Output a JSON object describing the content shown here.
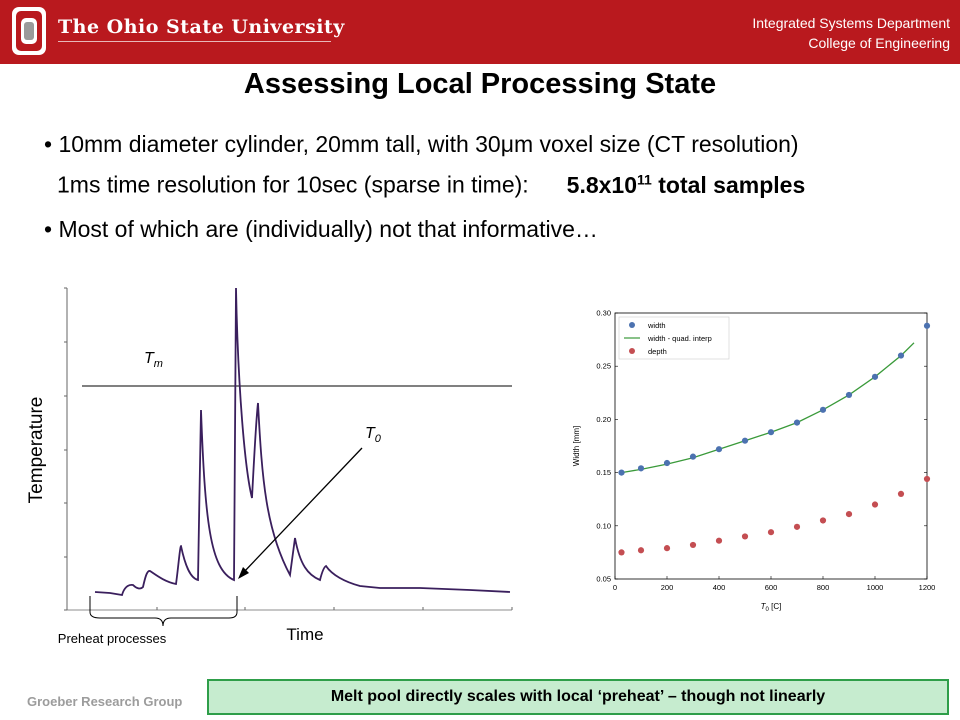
{
  "header": {
    "university": "The Ohio State University",
    "dept_line1": "Integrated Systems Department",
    "dept_line2": "College of Engineering",
    "brand_color": "#b9191e"
  },
  "slide": {
    "title": "Assessing Local Processing State",
    "bullet1": "• 10mm diameter cylinder, 20mm tall, with 30μm voxel size (CT resolution)",
    "bullet1_sub": "1ms time resolution for 10sec (sparse in time):",
    "samples_base": "5.8x10",
    "samples_exp": "11",
    "samples_tail": " total samples",
    "bullet2": "• Most of which are (individually) not that informative…"
  },
  "left_plot": {
    "ylabel": "Temperature",
    "xlabel": "Time",
    "tm_label": "T",
    "tm_sub": "m",
    "t0_label": "T",
    "t0_sub": "0",
    "preheat_label": "Preheat processes"
  },
  "chart_data": {
    "type": "scatter",
    "x": [
      25,
      100,
      200,
      300,
      400,
      500,
      600,
      700,
      800,
      900,
      1000,
      1100,
      1200
    ],
    "series": [
      {
        "name": "width",
        "color": "#4c72b0",
        "values": [
          0.15,
          0.154,
          0.159,
          0.165,
          0.172,
          0.18,
          0.188,
          0.197,
          0.209,
          0.223,
          0.24,
          0.26,
          0.288
        ]
      },
      {
        "name": "width - quad. interp",
        "color": "#3a9a3a",
        "kind": "line",
        "x": [
          25,
          100,
          200,
          300,
          400,
          500,
          600,
          700,
          800,
          900,
          1000,
          1100,
          1150
        ],
        "values": [
          0.15,
          0.153,
          0.158,
          0.164,
          0.172,
          0.18,
          0.188,
          0.197,
          0.209,
          0.223,
          0.24,
          0.26,
          0.272
        ]
      },
      {
        "name": "depth",
        "color": "#c44e52",
        "values": [
          0.075,
          0.077,
          0.079,
          0.082,
          0.086,
          0.09,
          0.094,
          0.099,
          0.105,
          0.111,
          0.12,
          0.13,
          0.144
        ]
      }
    ],
    "xlabel_base": "T",
    "xlabel_sub": "0",
    "xlabel_unit": " [C]",
    "ylabel": "Width [mm]",
    "xlim": [
      0,
      1200
    ],
    "ylim": [
      0.05,
      0.3
    ],
    "xticks": [
      "0",
      "200",
      "400",
      "600",
      "800",
      "1000",
      "1200"
    ],
    "yticks": [
      "0.05",
      "0.10",
      "0.15",
      "0.20",
      "0.25",
      "0.30"
    ],
    "legend": "top-left",
    "grid": false
  },
  "footer": {
    "group": "Groeber Research Group",
    "callout": "Melt pool directly scales with local ‘preheat’ – though not linearly"
  }
}
